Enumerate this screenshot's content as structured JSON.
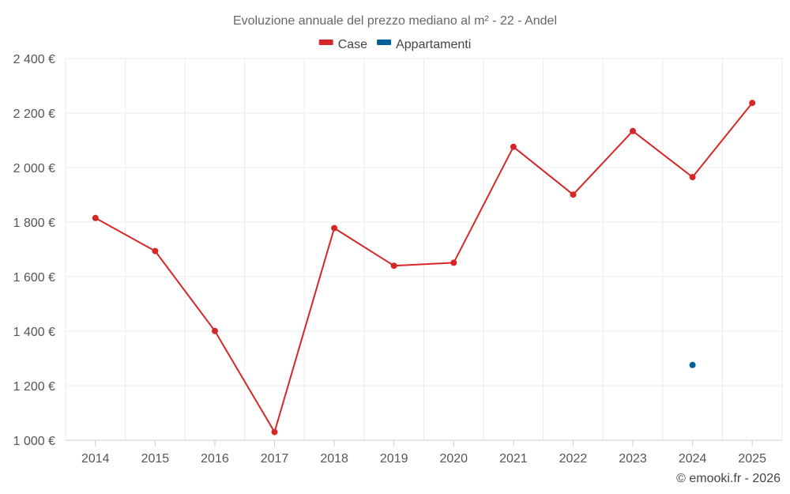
{
  "chart_data": {
    "type": "line",
    "title": "Evoluzione annuale del prezzo mediano al m² - 22 - Andel",
    "categories": [
      "2014",
      "2015",
      "2016",
      "2017",
      "2018",
      "2019",
      "2020",
      "2021",
      "2022",
      "2023",
      "2024",
      "2025"
    ],
    "series": [
      {
        "name": "Case",
        "color": "#d62728",
        "values": [
          1815,
          1694,
          1401,
          1030,
          1778,
          1640,
          1651,
          2076,
          1901,
          2134,
          1965,
          2237
        ]
      },
      {
        "name": "Appartamenti",
        "color": "#005f99",
        "values": [
          null,
          null,
          null,
          null,
          null,
          null,
          null,
          null,
          null,
          null,
          1276,
          null
        ]
      }
    ],
    "ylim": [
      1000,
      2400
    ],
    "yticks": [
      1000,
      1200,
      1400,
      1600,
      1800,
      2000,
      2200,
      2400
    ],
    "ytick_labels": [
      "1 000 €",
      "1 200 €",
      "1 400 €",
      "1 600 €",
      "1 800 €",
      "2 000 €",
      "2 200 €",
      "2 400 €"
    ],
    "grid": true,
    "legend_position": "top-center"
  },
  "credit": "© emooki.fr - 2026"
}
